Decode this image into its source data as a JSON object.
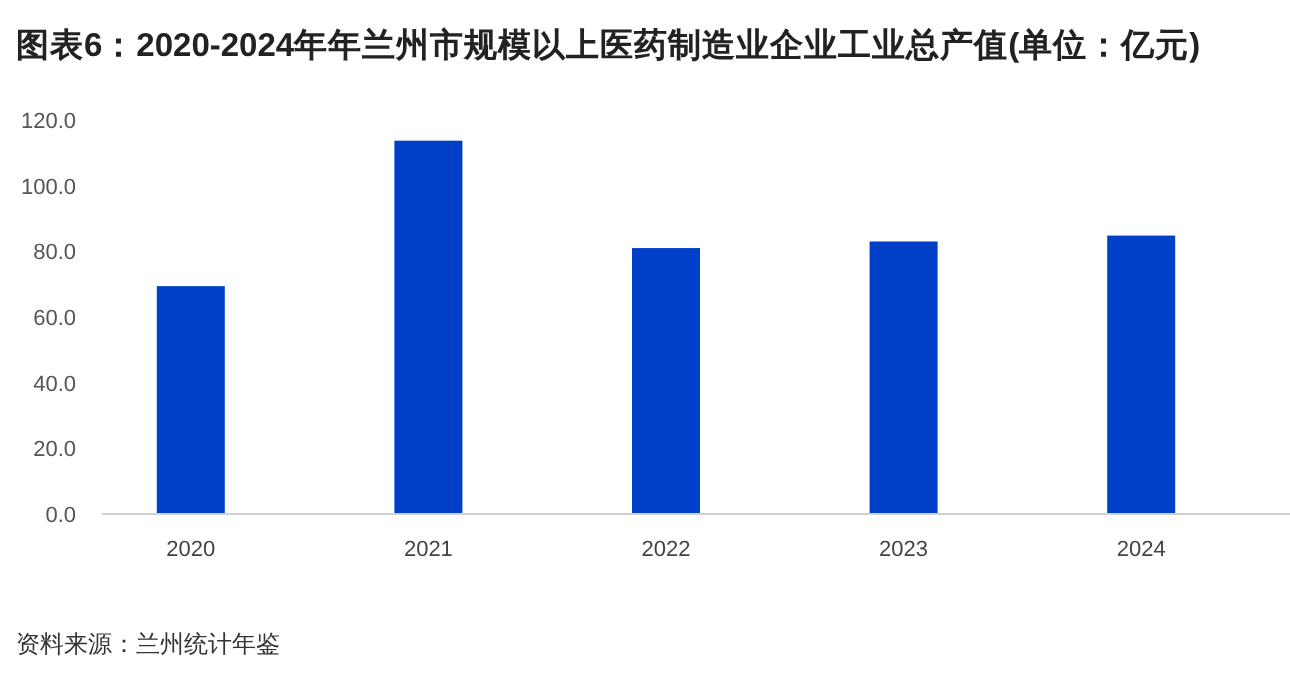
{
  "chart_data": {
    "type": "bar",
    "title": "图表6：2020-2024年年兰州市规模以上医药制造业企业工业总产值(单位：亿元)",
    "categories": [
      "2020",
      "2021",
      "2022",
      "2023",
      "2024"
    ],
    "values": [
      69.4,
      113.7,
      81.0,
      83.0,
      84.8
    ],
    "color": "#0040c8",
    "ylim": [
      0,
      120
    ],
    "yticks": [
      {
        "value": 0,
        "label": "0.0"
      },
      {
        "value": 20,
        "label": "20.0"
      },
      {
        "value": 40,
        "label": "40.0"
      },
      {
        "value": 60,
        "label": "60.0"
      },
      {
        "value": 80,
        "label": "80.0"
      },
      {
        "value": 100,
        "label": "100.0"
      },
      {
        "value": 120,
        "label": "120.0"
      }
    ],
    "grid": false,
    "annotations": [
      "资料来源：兰州统计年鉴"
    ]
  }
}
